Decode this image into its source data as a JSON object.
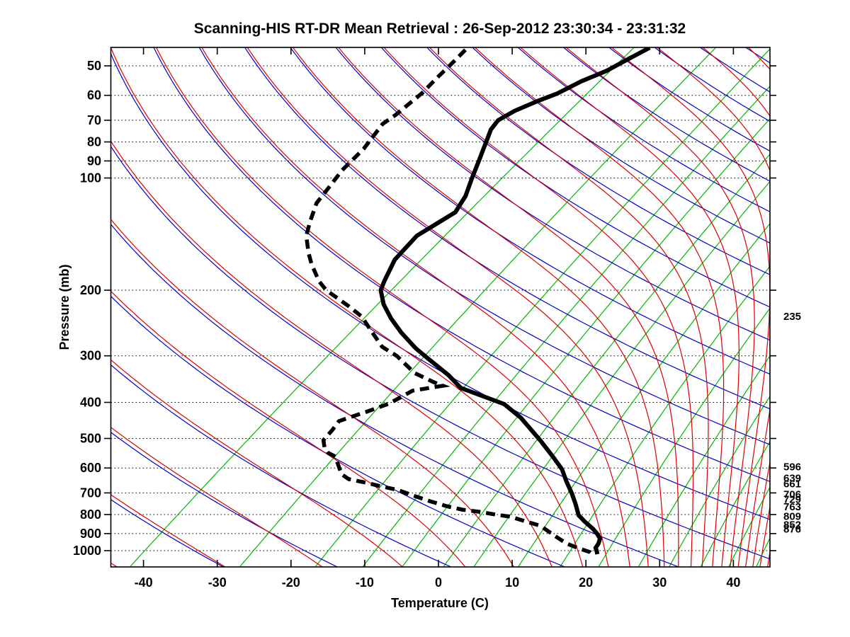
{
  "title": "Scanning-HIS RT-DR Mean Retrieval : 26-Sep-2012 23:30:34 - 23:31:32",
  "axes": {
    "x_label": "Temperature (C)",
    "y_label": "Pressure (mb)",
    "x_ticks_C": [
      -40,
      -30,
      -20,
      -10,
      0,
      10,
      20,
      30,
      40
    ],
    "y_ticks_mb": [
      50,
      60,
      70,
      80,
      90,
      100,
      200,
      300,
      400,
      500,
      600,
      700,
      800,
      900,
      1000
    ]
  },
  "right_pressure_labels_mb": [
    235,
    596,
    639,
    661,
    706,
    729,
    763,
    809,
    852,
    876
  ],
  "chart_data": {
    "type": "line",
    "subtype": "skew-t-log-p-sounding",
    "title": "Scanning-HIS RT-DR Mean Retrieval : 26-Sep-2012 23:30:34 - 23:31:32",
    "xlabel": "Temperature (C)",
    "ylabel": "Pressure (mb)",
    "x_range_C_at_1000mb": [
      -44.4,
      44.9
    ],
    "p_range_mb": [
      44.9,
      1105
    ],
    "skew_C_per_decade_of_pressure": 68.5,
    "grid": "dotted horizontal lines at labeled pressure levels",
    "legend_position": "none",
    "colors": {
      "temperature": "#000000",
      "dew_point": "#000000",
      "dry_adiabat": "#0000cc",
      "moist_adiabat": "#dd0000",
      "mixing_ratio": "#00b800",
      "grid": "#000000"
    },
    "background_isopleths": {
      "dry_adiabats_theta_K": [
        225,
        240,
        255,
        270,
        285,
        300,
        315,
        330,
        345,
        360,
        375,
        390,
        405,
        420,
        435,
        450,
        465,
        480,
        495,
        510,
        525,
        540,
        555
      ],
      "moist_adiabats_theta_e_K": [
        225,
        240,
        255,
        270,
        285,
        300,
        315,
        330,
        345,
        360,
        375,
        390,
        405,
        420,
        435,
        450,
        465,
        480,
        495,
        510,
        525,
        540,
        555
      ],
      "mixing_ratio_g_per_kg": [
        0.12,
        0.5,
        1.2,
        2,
        3,
        4.5,
        6,
        9,
        13,
        18,
        25,
        32,
        41,
        51,
        63
      ]
    },
    "series": [
      {
        "name": "temperature",
        "style": "solid",
        "points_p_T": [
          [
            44.7,
            -63.8
          ],
          [
            47.9,
            -64.6
          ],
          [
            51.6,
            -65.4
          ],
          [
            55.0,
            -66.9
          ],
          [
            59.3,
            -67.9
          ],
          [
            62.2,
            -69.2
          ],
          [
            66.1,
            -70.5
          ],
          [
            70.0,
            -71.0
          ],
          [
            74.1,
            -70.3
          ],
          [
            79.1,
            -68.9
          ],
          [
            84.1,
            -67.6
          ],
          [
            89.8,
            -66.2
          ],
          [
            100.2,
            -63.9
          ],
          [
            111.8,
            -61.5
          ],
          [
            123.6,
            -59.9
          ],
          [
            142.9,
            -60.8
          ],
          [
            165.7,
            -59.4
          ],
          [
            188.9,
            -56.9
          ],
          [
            200.0,
            -55.7
          ],
          [
            218.3,
            -52.7
          ],
          [
            238.2,
            -49.1
          ],
          [
            260.0,
            -45.1
          ],
          [
            286.3,
            -40.3
          ],
          [
            303.1,
            -37.1
          ],
          [
            338.1,
            -30.9
          ],
          [
            365.8,
            -26.9
          ],
          [
            404.5,
            -18.0
          ],
          [
            439.5,
            -13.3
          ],
          [
            473.3,
            -9.7
          ],
          [
            505.4,
            -6.5
          ],
          [
            559.0,
            -1.8
          ],
          [
            604.8,
            1.8
          ],
          [
            651.4,
            4.6
          ],
          [
            704.6,
            7.7
          ],
          [
            749.2,
            10.0
          ],
          [
            803.5,
            12.5
          ],
          [
            835.8,
            14.5
          ],
          [
            873.1,
            16.9
          ],
          [
            900.4,
            18.4
          ],
          [
            928.3,
            19.7
          ],
          [
            957.2,
            20.4
          ],
          [
            982.7,
            20.8
          ],
          [
            1004.4,
            21.6
          ],
          [
            1022.1,
            22.2
          ]
        ]
      },
      {
        "name": "dew_point",
        "style": "dashed",
        "points_p_T": [
          [
            45.3,
            -88.4
          ],
          [
            49.4,
            -87.7
          ],
          [
            53.9,
            -87.1
          ],
          [
            59.3,
            -86.3
          ],
          [
            63.4,
            -86.1
          ],
          [
            67.7,
            -85.9
          ],
          [
            71.6,
            -86.0
          ],
          [
            83.5,
            -84.0
          ],
          [
            95.2,
            -83.0
          ],
          [
            107.0,
            -81.5
          ],
          [
            116.8,
            -80.4
          ],
          [
            130.9,
            -77.9
          ],
          [
            142.9,
            -75.8
          ],
          [
            158.6,
            -72.4
          ],
          [
            170.1,
            -69.9
          ],
          [
            188.9,
            -65.8
          ],
          [
            200.0,
            -63.1
          ],
          [
            221.2,
            -57.0
          ],
          [
            235.1,
            -53.5
          ],
          [
            257.8,
            -49.4
          ],
          [
            283.8,
            -45.1
          ],
          [
            300.4,
            -41.4
          ],
          [
            333.6,
            -35.9
          ],
          [
            353.2,
            -31.6
          ],
          [
            361.0,
            -29.7
          ],
          [
            372.2,
            -32.9
          ],
          [
            402.7,
            -33.7
          ],
          [
            424.4,
            -35.3
          ],
          [
            439.5,
            -36.6
          ],
          [
            449.2,
            -37.3
          ],
          [
            473.3,
            -36.6
          ],
          [
            505.4,
            -35.9
          ],
          [
            530.4,
            -34.3
          ],
          [
            546.9,
            -32.9
          ],
          [
            559.0,
            -31.3
          ],
          [
            623.6,
            -27.2
          ],
          [
            643.0,
            -25.3
          ],
          [
            657.1,
            -22.3
          ],
          [
            671.6,
            -19.7
          ],
          [
            686.5,
            -16.8
          ],
          [
            711.0,
            -13.6
          ],
          [
            736.4,
            -10.3
          ],
          [
            759.4,
            -7.1
          ],
          [
            776.2,
            -4.3
          ],
          [
            786.4,
            -1.6
          ],
          [
            800.2,
            1.1
          ],
          [
            810.8,
            3.5
          ],
          [
            835.8,
            6.6
          ],
          [
            858.1,
            9.3
          ],
          [
            916.2,
            13.3
          ],
          [
            957.2,
            16.1
          ],
          [
            987.0,
            18.7
          ],
          [
            1008.8,
            20.8
          ],
          [
            1022.1,
            21.5
          ]
        ]
      }
    ]
  }
}
